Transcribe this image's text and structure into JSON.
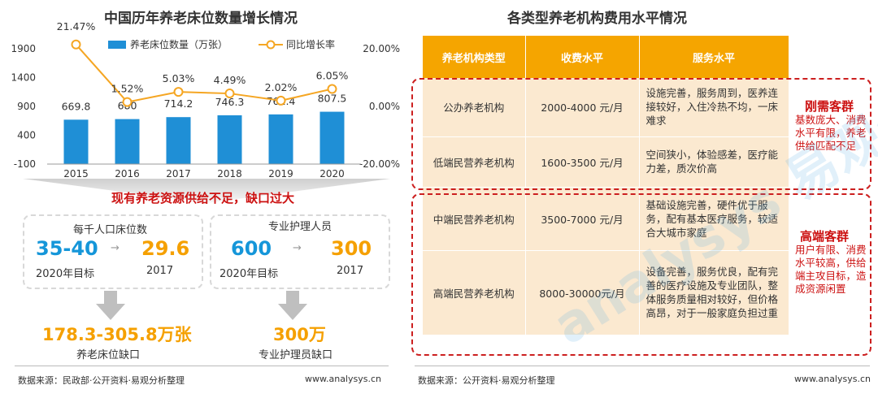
{
  "left_title": "中国历年养老床位数量增长情况",
  "right_title": "各类型养老机构费用水平情况",
  "legend": {
    "bar": "养老床位数量（万张）",
    "line": "同比增长率"
  },
  "chart_data": {
    "type": "bar",
    "categories": [
      "2015",
      "2016",
      "2017",
      "2018",
      "2019",
      "2020"
    ],
    "series": [
      {
        "name": "养老床位数量（万张）",
        "type": "bar",
        "axis": "left",
        "values": [
          669.8,
          680,
          714.2,
          746.3,
          761.4,
          807.5
        ],
        "labels": [
          "669.8",
          "680",
          "714.2",
          "746.3",
          "761.4",
          "807.5"
        ],
        "color": "#1f8fd6"
      },
      {
        "name": "同比增长率",
        "type": "line",
        "axis": "right",
        "values": [
          21.47,
          1.52,
          5.03,
          4.49,
          2.02,
          6.05
        ],
        "labels": [
          "21.47%",
          "1.52%",
          "5.03%",
          "4.49%",
          "2.02%",
          "6.05%"
        ],
        "color": "#f5a623"
      }
    ],
    "left_axis": {
      "ticks": [
        "1900",
        "1400",
        "900",
        "400",
        "-100"
      ],
      "ylim": [
        -100,
        1900
      ]
    },
    "right_axis": {
      "ticks": [
        "20.00%",
        "0.00%",
        "-20.00%"
      ],
      "ylim": [
        -20,
        20
      ]
    }
  },
  "banner": "现有养老资源供给不足，缺口过大",
  "cards": [
    {
      "label": "每千人口床位数",
      "target_value": "35-40",
      "target_label": "2020年目标",
      "actual_value": "29.6",
      "actual_label": "2017"
    },
    {
      "label": "专业护理人员",
      "target_value": "600",
      "target_label": "2020年目标",
      "actual_value": "300",
      "actual_label": "2017"
    }
  ],
  "gaps": [
    {
      "value": "178.3-305.8万张",
      "label": "养老床位缺口"
    },
    {
      "value": "300万",
      "label": "专业护理员缺口"
    }
  ],
  "footer_left": "数据来源：民政部·公开资料·易观分析整理",
  "footer_left_url": "www.analysys.cn",
  "footer_right": "数据来源：公开资料·易观分析整理",
  "footer_right_url": "www.analysys.cn",
  "table": {
    "headers": [
      "养老机构类型",
      "收费水平",
      "服务水平"
    ],
    "rows": [
      {
        "type": "公办养老机构",
        "fee": "2000-4000 元/月",
        "service": "设施完善，服务周到，医养连接较好，入住冷热不均，一床难求"
      },
      {
        "type": "低端民营养老机构",
        "fee": "1600-3500 元/月",
        "service": "空间狭小，体验感差，医疗能力差，质次价高"
      },
      {
        "type": "中端民营养老机构",
        "fee": "3500-7000 元/月",
        "service": "基础设施完善，硬件优于服务，配有基本医疗服务，较适合大城市家庭"
      },
      {
        "type": "高端民营养老机构",
        "fee": "8000-30000元/月",
        "service": "设备完善，服务优良，配有完善的医疗设施及专业团队，整体服务质量相对较好，但价格高昂，对于一般家庭负担过重"
      }
    ]
  },
  "side_notes": [
    {
      "title": "刚需客群",
      "text": "基数庞大、消费水平有限，养老供给匹配不足"
    },
    {
      "title": "高端客群",
      "text": "用户有限、消费水平较高，供给端主攻目标，造成资源闲置"
    }
  ],
  "watermark": "analysys 易观分析"
}
